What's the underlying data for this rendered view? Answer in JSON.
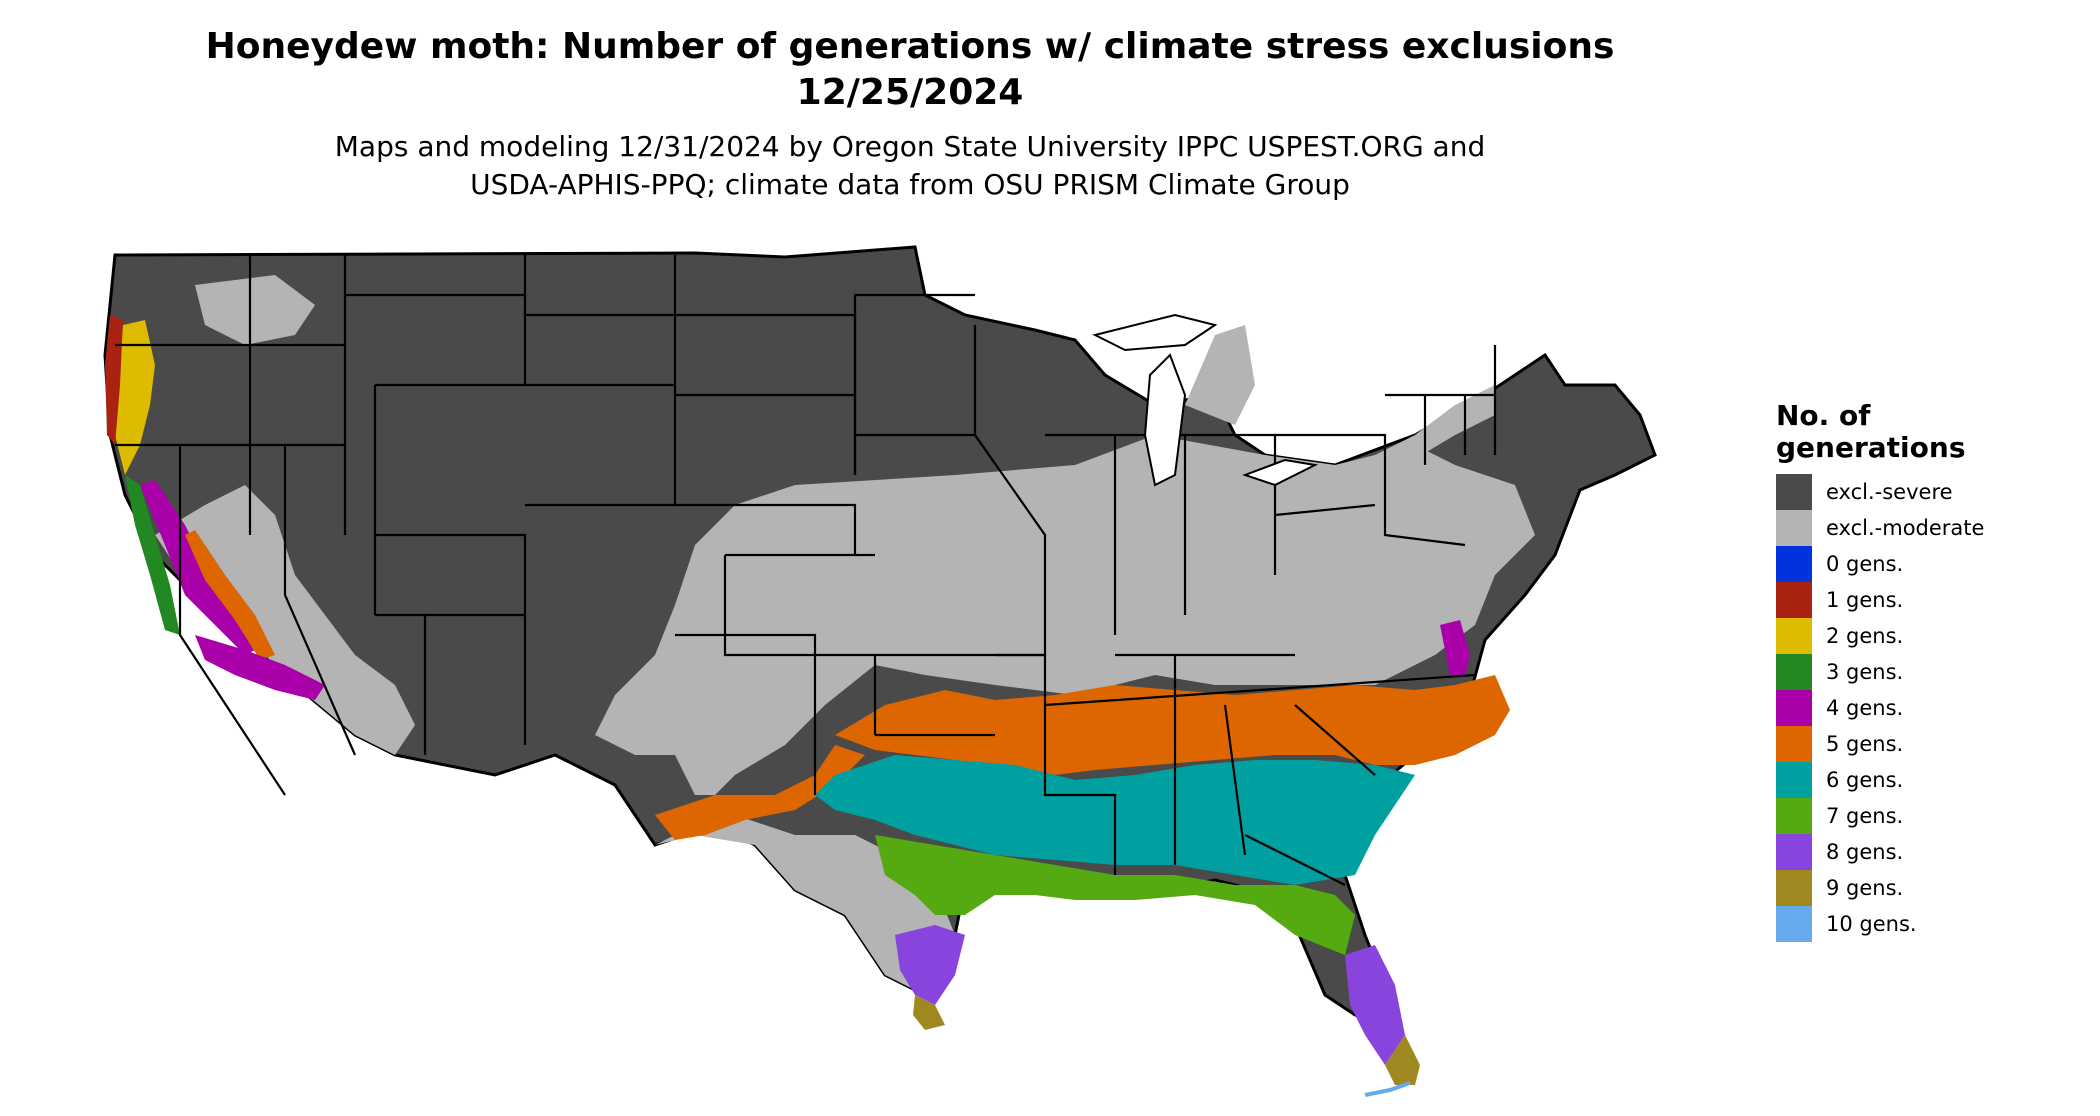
{
  "title": {
    "line1": "Honeydew moth: Number of generations w/ climate stress exclusions",
    "line2": "12/25/2024"
  },
  "subtitle": {
    "line1": "Maps and modeling 12/31/2024 by Oregon State University IPPC USPEST.ORG and",
    "line2": "USDA-APHIS-PPQ; climate data from OSU PRISM Climate Group"
  },
  "legend": {
    "title_line1": "No. of",
    "title_line2": "generations",
    "items": [
      {
        "label": "excl.-severe",
        "color": "#4a4a4a"
      },
      {
        "label": "excl.-moderate",
        "color": "#b4b4b4"
      },
      {
        "label": "0 gens.",
        "color": "#0033dd"
      },
      {
        "label": "1 gens.",
        "color": "#aa2211"
      },
      {
        "label": "2 gens.",
        "color": "#ddbb00"
      },
      {
        "label": "3 gens.",
        "color": "#228822"
      },
      {
        "label": "4 gens.",
        "color": "#aa00aa"
      },
      {
        "label": "5 gens.",
        "color": "#dd6600"
      },
      {
        "label": "6 gens.",
        "color": "#00a0a0"
      },
      {
        "label": "7 gens.",
        "color": "#55aa11"
      },
      {
        "label": "8 gens.",
        "color": "#8844dd"
      },
      {
        "label": "9 gens.",
        "color": "#a08820"
      },
      {
        "label": "10 gens.",
        "color": "#66aaee"
      }
    ]
  },
  "map": {
    "region": "Contiguous United States",
    "colors": {
      "severe": "#4a4a4a",
      "moderate": "#b4b4b4",
      "gen1": "#aa2211",
      "gen2": "#ddbb00",
      "gen3": "#228822",
      "gen4": "#aa00aa",
      "gen5": "#dd6600",
      "gen6": "#00a0a0",
      "gen7": "#55aa11",
      "gen8": "#8844dd",
      "gen9": "#a08820",
      "gen10": "#66aaee",
      "border": "#000000"
    }
  }
}
